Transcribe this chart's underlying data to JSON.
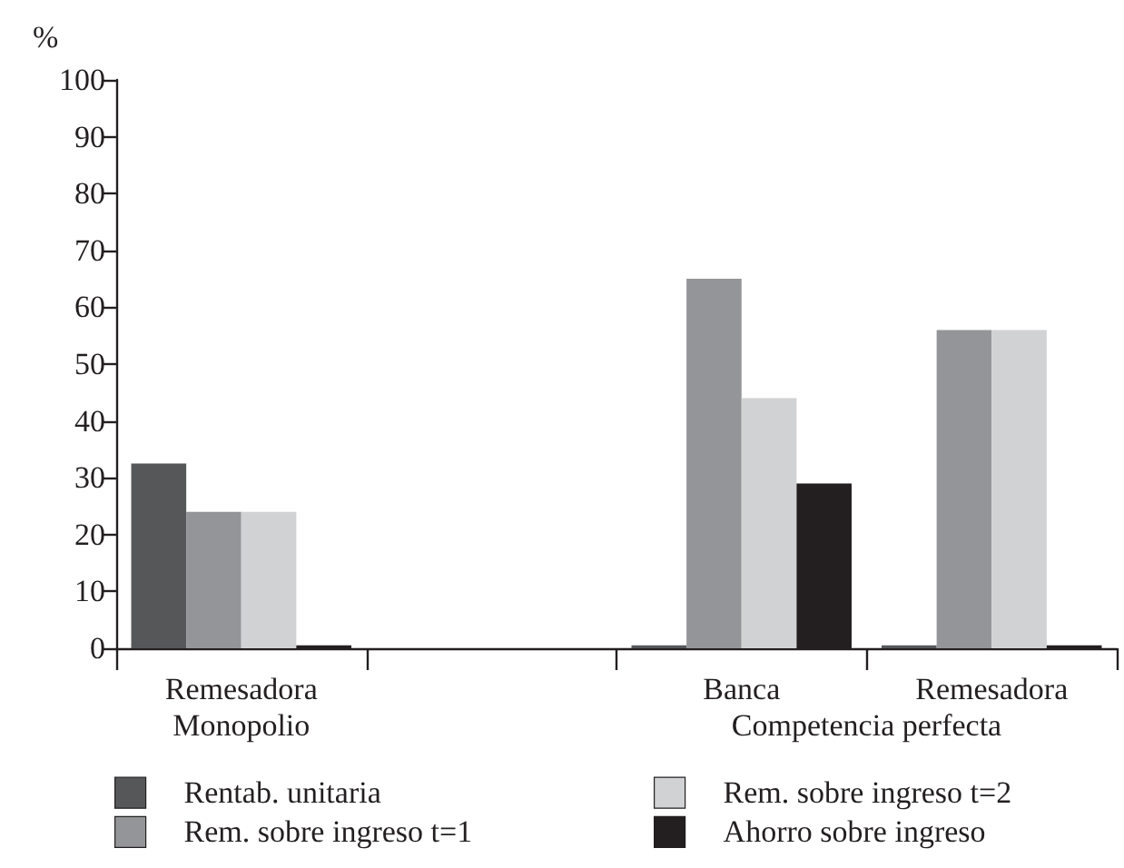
{
  "chart_data": {
    "type": "bar",
    "ylabel": "%",
    "categories": [
      "Remesadora",
      null,
      "Banca",
      "Remesadora"
    ],
    "series": [
      {
        "name": "Rentab. unitaria",
        "color": "#555759",
        "values": [
          32.5,
          null,
          0.5,
          0.5
        ]
      },
      {
        "name": "Rem. sobre ingreso t=1",
        "color": "#949599",
        "values": [
          24,
          null,
          65,
          56
        ]
      },
      {
        "name": "Rem. sobre ingreso t=2",
        "color": "#d1d2d4",
        "values": [
          24,
          null,
          44,
          56
        ]
      },
      {
        "name": "Ahorro sobre ingreso",
        "color": "#231f20",
        "values": [
          0.5,
          null,
          29,
          0.5
        ]
      }
    ],
    "ylim": [
      0,
      100
    ],
    "yticks": [
      0,
      10,
      20,
      30,
      40,
      50,
      60,
      70,
      80,
      90,
      100
    ],
    "grid": false,
    "legend": "bottom",
    "annotations": [
      "Monopolio",
      "Competencia perfecta"
    ]
  }
}
